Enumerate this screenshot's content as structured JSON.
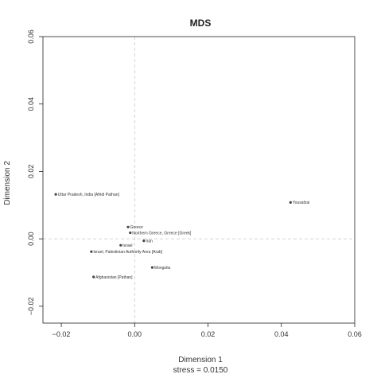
{
  "chart_data": {
    "type": "scatter",
    "title": "MDS",
    "xlabel": "Dimension 1",
    "ylabel": "Dimension 2",
    "subtitle": "stress = 0.0150",
    "xlim": [
      -0.025,
      0.06
    ],
    "ylim": [
      -0.025,
      0.06
    ],
    "x_ticks": [
      -0.02,
      0.0,
      0.02,
      0.04,
      0.06
    ],
    "y_ticks": [
      -0.02,
      0.0,
      0.02,
      0.04,
      0.06
    ],
    "x_tick_labels": [
      "−0.02",
      "0.00",
      "0.02",
      "0.04",
      "0.06"
    ],
    "y_tick_labels": [
      "−0.02",
      "0.00",
      "0.02",
      "0.04",
      "0.06"
    ],
    "reference_lines": {
      "x": 0.0,
      "y": 0.0
    },
    "points": [
      {
        "label": "Uttar Pradesh, India [Afridi Pathan]",
        "x": -0.0215,
        "y": 0.0132
      },
      {
        "label": "Yousafzai",
        "x": 0.0425,
        "y": 0.0108
      },
      {
        "label": "Greece",
        "x": -0.0018,
        "y": 0.0035
      },
      {
        "label": "Northern Greece, Greece [Greek]",
        "x": -0.0012,
        "y": 0.0018
      },
      {
        "label": "Iran",
        "x": 0.0025,
        "y": -0.0006
      },
      {
        "label": "Israel",
        "x": -0.0038,
        "y": -0.0019
      },
      {
        "label": "Israel, Palestinian Authority Area [Arab]",
        "x": -0.0118,
        "y": -0.0038
      },
      {
        "label": "Mongolia",
        "x": 0.0048,
        "y": -0.0085
      },
      {
        "label": "Afghanistan [Pathan]",
        "x": -0.0112,
        "y": -0.0113
      }
    ]
  }
}
